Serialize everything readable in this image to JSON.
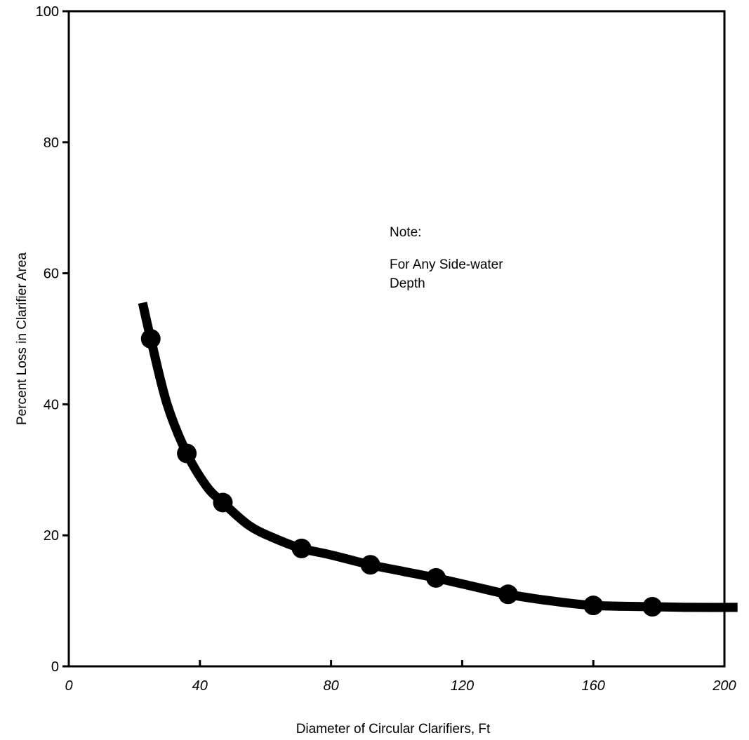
{
  "chart_data": {
    "type": "line",
    "title": "",
    "xlabel": "Diameter of Circular Clarifiers, Ft",
    "ylabel": "Percent Loss in Clarifier Area",
    "xlim": [
      0,
      200
    ],
    "ylim": [
      0,
      100
    ],
    "x_ticks": [
      0,
      40,
      80,
      120,
      160,
      200
    ],
    "y_ticks": [
      0,
      20,
      40,
      60,
      80,
      100
    ],
    "x_tick_labels": [
      "0",
      "40",
      "80",
      "120",
      "160",
      "200"
    ],
    "y_tick_labels": [
      "0",
      "20",
      "40",
      "60",
      "80",
      "100"
    ],
    "grid": false,
    "legend": "none",
    "curve": {
      "x": [
        22.5,
        25,
        30,
        36,
        42,
        47,
        55,
        63,
        71,
        80,
        92,
        102,
        112,
        125,
        134,
        147,
        160,
        178,
        190,
        204
      ],
      "y": [
        55.5,
        50,
        40,
        32.5,
        27.5,
        25,
        21.5,
        19.5,
        18,
        17,
        15.5,
        14.5,
        13.5,
        12,
        11,
        10,
        9.3,
        9.1,
        9.0,
        9.0
      ]
    },
    "markers": {
      "x": [
        25,
        36,
        47,
        71,
        92,
        112,
        134,
        160,
        178
      ],
      "y": [
        50,
        32.5,
        25,
        18,
        15.5,
        13.5,
        11,
        9.3,
        9.1
      ]
    },
    "annotation": {
      "lines": [
        "Note:",
        "For Any Side-water",
        "Depth"
      ],
      "x": 98,
      "y": 66
    }
  },
  "colors": {
    "ink": "#000000",
    "background": "#ffffff"
  }
}
